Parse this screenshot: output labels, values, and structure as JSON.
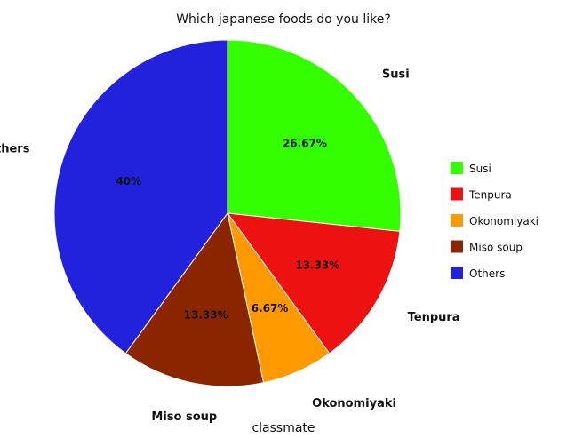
{
  "chart_data": {
    "type": "pie",
    "title": "Which japanese foods do you like?",
    "xlabel": "classmate",
    "categories": [
      "Susi",
      "Tenpura",
      "Okonomiyaki",
      "Miso soup",
      "Others"
    ],
    "values": [
      26.67,
      13.33,
      6.67,
      13.33,
      40
    ],
    "data_labels": [
      "26.67%",
      "13.33%",
      "6.67%",
      "13.33%",
      "40%"
    ],
    "colors": [
      "#33ff00",
      "#ee1111",
      "#ff9900",
      "#8b2500",
      "#2222dd"
    ],
    "legend": {
      "placement": "right",
      "entries": [
        "Susi",
        "Tenpura",
        "Okonomiyaki",
        "Miso soup",
        "Others"
      ]
    }
  }
}
